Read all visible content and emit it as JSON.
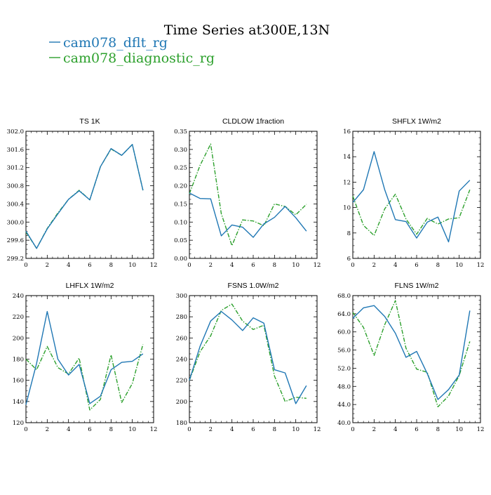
{
  "title": "Time Series at300E,13N",
  "legend": [
    {
      "label": "cam078_dflt_rg",
      "color": "#1f77b4",
      "dash": "solid"
    },
    {
      "label": "cam078_diagnostic_rg",
      "color": "#2ca02c",
      "dash": "dashdot"
    }
  ],
  "chart_data": [
    {
      "type": "line",
      "title": "TS   1K",
      "xlim": [
        0,
        12
      ],
      "ylim": [
        299.2,
        302.0
      ],
      "xticks": [
        "0",
        "2",
        "4",
        "6",
        "8",
        "10",
        "12"
      ],
      "yticks": [
        "299.2",
        "299.6",
        "300.0",
        "300.4",
        "300.8",
        "301.2",
        "301.6",
        "302.0"
      ],
      "x": [
        0,
        1,
        2,
        3,
        4,
        5,
        6,
        7,
        8,
        9,
        10,
        11
      ],
      "series": [
        {
          "name": "cam078_dflt_rg",
          "values": [
            299.8,
            299.42,
            299.85,
            300.18,
            300.5,
            300.69,
            300.49,
            301.22,
            301.62,
            301.47,
            301.71,
            300.7
          ]
        },
        {
          "name": "cam078_diagnostic_rg",
          "values": [
            299.78,
            299.42,
            299.86,
            300.2,
            300.5,
            300.7,
            300.49,
            301.22,
            301.61,
            301.47,
            301.71,
            300.7
          ]
        }
      ]
    },
    {
      "type": "line",
      "title": "CLDLOW   1fraction",
      "xlim": [
        0,
        12
      ],
      "ylim": [
        0.0,
        0.35
      ],
      "xticks": [
        "0",
        "2",
        "4",
        "6",
        "8",
        "10",
        "12"
      ],
      "yticks": [
        "0.00",
        "0.05",
        "0.10",
        "0.15",
        "0.20",
        "0.25",
        "0.30",
        "0.35"
      ],
      "x": [
        0,
        1,
        2,
        3,
        4,
        5,
        6,
        7,
        8,
        9,
        10,
        11
      ],
      "series": [
        {
          "name": "cam078_dflt_rg",
          "values": [
            0.18,
            0.165,
            0.164,
            0.062,
            0.092,
            0.086,
            0.058,
            0.095,
            0.113,
            0.143,
            0.112,
            0.075
          ]
        },
        {
          "name": "cam078_diagnostic_rg",
          "values": [
            0.178,
            0.256,
            0.315,
            0.123,
            0.035,
            0.106,
            0.103,
            0.09,
            0.15,
            0.143,
            0.12,
            0.149
          ]
        }
      ]
    },
    {
      "type": "line",
      "title": "SHFLX   1W/m2",
      "xlim": [
        0,
        12
      ],
      "ylim": [
        6,
        16
      ],
      "xticks": [
        "0",
        "2",
        "4",
        "6",
        "8",
        "10",
        "12"
      ],
      "yticks": [
        "6",
        "8",
        "10",
        "12",
        "14",
        "16"
      ],
      "x": [
        0,
        1,
        2,
        3,
        4,
        5,
        6,
        7,
        8,
        9,
        10,
        11
      ],
      "series": [
        {
          "name": "cam078_dflt_rg",
          "values": [
            10.4,
            11.4,
            14.4,
            11.4,
            9.05,
            8.9,
            7.6,
            8.85,
            9.25,
            7.3,
            11.3,
            12.15
          ]
        },
        {
          "name": "cam078_diagnostic_rg",
          "values": [
            10.9,
            8.6,
            7.8,
            9.9,
            11.05,
            9.1,
            7.9,
            9.15,
            8.7,
            9.1,
            9.2,
            11.4
          ]
        }
      ]
    },
    {
      "type": "line",
      "title": "LHFLX   1W/m2",
      "xlim": [
        0,
        12
      ],
      "ylim": [
        120,
        240
      ],
      "xticks": [
        "0",
        "2",
        "4",
        "6",
        "8",
        "10",
        "12"
      ],
      "yticks": [
        "120",
        "140",
        "160",
        "180",
        "200",
        "220",
        "240"
      ],
      "x": [
        0,
        1,
        2,
        3,
        4,
        5,
        6,
        7,
        8,
        9,
        10,
        11
      ],
      "series": [
        {
          "name": "cam078_dflt_rg",
          "values": [
            137,
            176,
            225,
            180,
            165,
            175,
            138,
            145,
            170,
            177,
            178,
            185
          ]
        },
        {
          "name": "cam078_diagnostic_rg",
          "values": [
            180,
            170,
            192,
            172,
            166,
            181,
            132,
            142,
            184,
            139,
            157,
            194
          ]
        }
      ]
    },
    {
      "type": "line",
      "title": "FSNS   1.0W/m2",
      "xlim": [
        0,
        12
      ],
      "ylim": [
        180,
        300
      ],
      "xticks": [
        "0",
        "2",
        "4",
        "6",
        "8",
        "10",
        "12"
      ],
      "yticks": [
        "180",
        "200",
        "220",
        "240",
        "260",
        "280",
        "300"
      ],
      "x": [
        0,
        1,
        2,
        3,
        4,
        5,
        6,
        7,
        8,
        9,
        10,
        11
      ],
      "series": [
        {
          "name": "cam078_dflt_rg",
          "values": [
            220,
            252,
            276,
            285,
            277,
            267,
            279,
            274,
            230,
            227,
            198,
            215
          ]
        },
        {
          "name": "cam078_diagnostic_rg",
          "values": [
            220,
            247,
            262,
            286,
            292,
            276,
            268,
            272,
            224,
            200,
            204,
            203
          ]
        }
      ]
    },
    {
      "type": "line",
      "title": "FLNS   1W/m2",
      "xlim": [
        0,
        12
      ],
      "ylim": [
        40.0,
        68.0
      ],
      "xticks": [
        "0",
        "2",
        "4",
        "6",
        "8",
        "10",
        "12"
      ],
      "yticks": [
        "40.0",
        "44.0",
        "48.0",
        "52.0",
        "56.0",
        "60.0",
        "64.0",
        "68.0"
      ],
      "x": [
        0,
        1,
        2,
        3,
        4,
        5,
        6,
        7,
        8,
        9,
        10,
        11
      ],
      "series": [
        {
          "name": "cam078_dflt_rg",
          "values": [
            63.0,
            65.3,
            65.8,
            63.4,
            59.7,
            54.4,
            55.7,
            50.8,
            45.1,
            47.3,
            50.5,
            64.7
          ]
        },
        {
          "name": "cam078_diagnostic_rg",
          "values": [
            64.3,
            61.0,
            54.8,
            61.6,
            66.9,
            56.4,
            51.8,
            51.1,
            43.5,
            45.9,
            50.4,
            57.9
          ]
        }
      ]
    }
  ]
}
